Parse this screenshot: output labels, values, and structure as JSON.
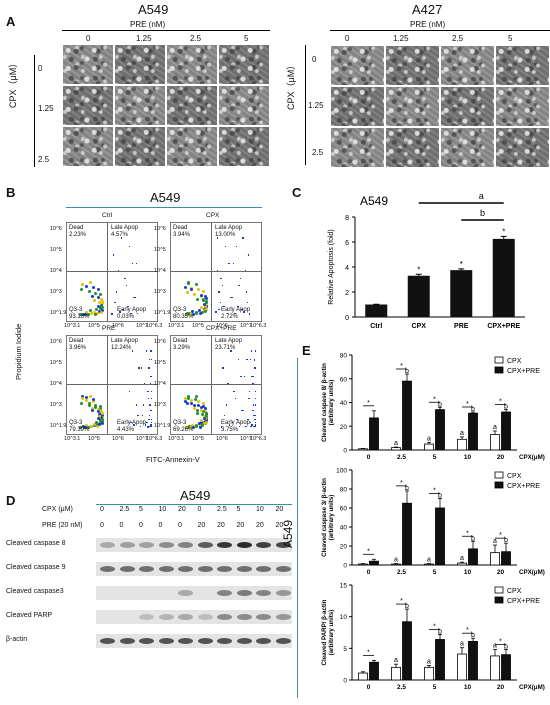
{
  "panelA": {
    "label": "A",
    "left": {
      "cell_line": "A549",
      "pre_label": "PRE (nM)",
      "cols": [
        "0",
        "1.25",
        "2.5",
        "5"
      ],
      "cpx_label": "CPX（μM）",
      "rows": [
        "0",
        "1.25",
        "2.5"
      ]
    },
    "right": {
      "cell_line": "A427",
      "pre_label": "PRE (nM)",
      "cols": [
        "0",
        "1.25",
        "2.5",
        "5"
      ],
      "cpx_label": "CPX（μM）",
      "rows": [
        "0",
        "1.25",
        "2.5"
      ]
    }
  },
  "panelB": {
    "label": "B",
    "cell_line": "A549",
    "y_axis": "Propidium Iodide",
    "x_axis": "FITC-Annexin-V",
    "tick_y": [
      "10^6",
      "10^5",
      "10^4",
      "10^3",
      "10^1.9"
    ],
    "tick_x": [
      "10^3.1",
      "10^5",
      "10^6",
      "10^7"
    ],
    "tick_x_end": "10^6.3",
    "quadrant_names": {
      "dead": "Dead",
      "late": "Late Apop",
      "early": "Early Apop",
      "live": "Q3-3"
    },
    "plots": [
      {
        "title": "Ctrl",
        "dead": "2.23%",
        "late": "4.57%",
        "live": "93.18%",
        "early": "0.03%"
      },
      {
        "title": "CPX",
        "dead": "3.94%",
        "late": "13.00%",
        "live": "80.35%",
        "early": "2.72%"
      },
      {
        "title": "PRE",
        "dead": "3.96%",
        "late": "12.24%",
        "live": "79.39%",
        "early": "4.43%"
      },
      {
        "title": "CPX+PRE",
        "dead": "3.29%",
        "late": "23.71%",
        "live": "69.26%",
        "early": "3.75%"
      }
    ]
  },
  "panelC": {
    "label": "C",
    "cell_line": "A549",
    "sig_a": "a",
    "sig_b": "b",
    "star": "*"
  },
  "panelD": {
    "label": "D",
    "cell_line": "A549",
    "cpx_row_label": "CPX (μM)",
    "cpx_values": [
      "0",
      "2.5",
      "5",
      "10",
      "20",
      "0",
      "2.5",
      "5",
      "10",
      "20"
    ],
    "pre_row_label": "PRE (20 nM)",
    "pre_values": [
      "0",
      "0",
      "0",
      "0",
      "0",
      "20",
      "20",
      "20",
      "20",
      "20"
    ],
    "blots": [
      "Cleaved caspase 8",
      "Cleaved caspase 9",
      "Cleaved caspase3",
      "Cleaved PARP",
      "β-actin"
    ]
  },
  "panelE": {
    "label": "E",
    "cell_line": "A549",
    "sig_a": "a",
    "sig_b": "b",
    "star": "*"
  },
  "chart_data": [
    {
      "type": "bar",
      "categories": [
        "Ctrl",
        "CPX",
        "PRE",
        "CPX+PRE"
      ],
      "values": [
        1.0,
        3.3,
        3.75,
        6.25
      ],
      "errors": [
        0.02,
        0.12,
        0.1,
        0.2
      ],
      "xlabel": "",
      "ylabel": "Relative Apoptosis (fold)",
      "ylim": [
        0,
        8
      ],
      "yticks": [
        "0",
        "2",
        "4",
        "6",
        "8"
      ]
    },
    {
      "type": "bar",
      "categories": [
        "0",
        "2.5",
        "5",
        "10",
        "20"
      ],
      "xlabel": "CPX(μM)",
      "ylabel": "Cleaved caspase 8/ β-actin (arbitrary units)",
      "ylim": [
        0,
        80
      ],
      "yticks": [
        "0",
        "20",
        "40",
        "60",
        "80"
      ],
      "series": [
        {
          "name": "CPX",
          "values": [
            1,
            2,
            5,
            9,
            13
          ],
          "errors": [
            0.3,
            0.5,
            1.5,
            2,
            3
          ]
        },
        {
          "name": "CPX+PRE",
          "values": [
            27,
            58,
            34,
            31,
            32
          ],
          "errors": [
            6,
            6,
            2,
            1,
            2
          ]
        }
      ]
    },
    {
      "type": "bar",
      "categories": [
        "0",
        "2.5",
        "5",
        "10",
        "20"
      ],
      "xlabel": "CPX(μM)",
      "ylabel": "Cleaved caspase 3/ β-actin (arbitrary units)",
      "ylim": [
        0,
        100
      ],
      "yticks": [
        "0",
        "20",
        "40",
        "60",
        "80",
        "100"
      ],
      "series": [
        {
          "name": "CPX",
          "values": [
            1,
            1,
            1,
            2,
            13
          ],
          "errors": [
            0.5,
            0.5,
            0.5,
            1,
            8
          ]
        },
        {
          "name": "CPX+PRE",
          "values": [
            4,
            65,
            60,
            17,
            14
          ],
          "errors": [
            2,
            13,
            10,
            8,
            9
          ]
        }
      ]
    },
    {
      "type": "bar",
      "categories": [
        "0",
        "2.5",
        "5",
        "10",
        "20"
      ],
      "xlabel": "CPX(μM)",
      "ylabel": "Cleaved PARP/ β-actin (arbitrary units)",
      "ylim": [
        0,
        15
      ],
      "yticks": [
        "0",
        "5",
        "10",
        "15"
      ],
      "series": [
        {
          "name": "CPX",
          "values": [
            1.1,
            2,
            2,
            4.1,
            3.8
          ],
          "errors": [
            0.2,
            0.5,
            0.3,
            1,
            1
          ]
        },
        {
          "name": "CPX+PRE",
          "values": [
            2.8,
            9.2,
            6.4,
            6.1,
            4
          ],
          "errors": [
            0.3,
            2,
            0.8,
            0.5,
            0.8
          ]
        }
      ]
    }
  ]
}
